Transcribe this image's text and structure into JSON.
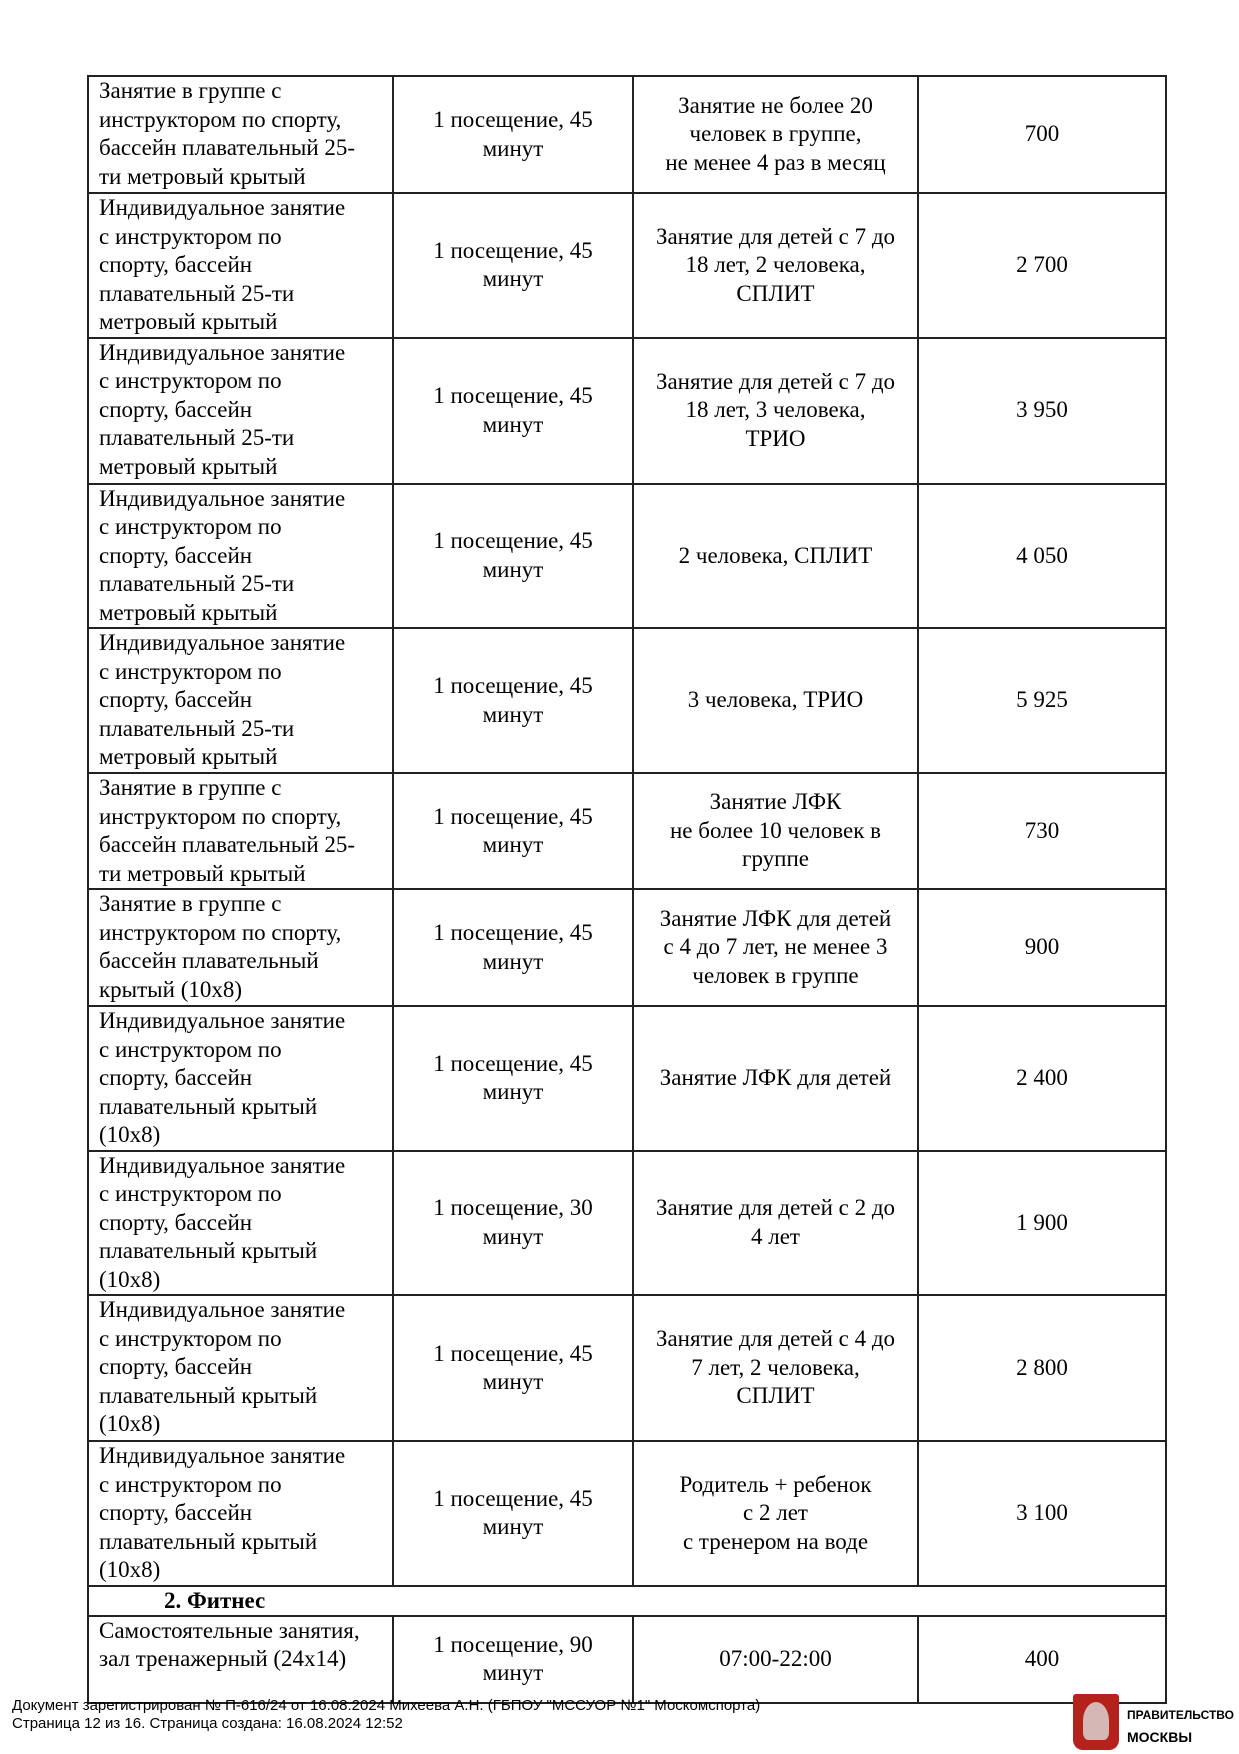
{
  "table": {
    "rows": [
      [
        "Занятие в группе с\nинструктором по спорту,\nбассейн плавательный 25-\nти метровый крытый",
        "1 посещение, 45\nминут",
        "Занятие не более 20\nчеловек в группе,\nне менее 4 раз в месяц",
        "700"
      ],
      [
        "Индивидуальное занятие\nс инструктором по\nспорту, бассейн\nплавательный 25-ти\nметровый крытый",
        "1 посещение, 45\nминут",
        "Занятие для детей с 7 до\n18 лет, 2 человека,\nСПЛИТ",
        "2 700"
      ],
      [
        "Индивидуальное занятие\nс инструктором по\nспорту, бассейн\nплавательный 25-ти\nметровый крытый",
        "1 посещение, 45\nминут",
        "Занятие для детей с 7 до\n18 лет, 3 человека,\nТРИО",
        "3 950"
      ],
      [
        "Индивидуальное занятие\nс инструктором по\nспорту, бассейн\nплавательный 25-ти\nметровый крытый",
        "1 посещение, 45\nминут",
        "2 человека, СПЛИТ",
        "4 050"
      ],
      [
        "Индивидуальное занятие\nс инструктором по\nспорту, бассейн\nплавательный 25-ти\nметровый крытый",
        "1 посещение, 45\nминут",
        "3 человека, ТРИО",
        "5 925"
      ],
      [
        "Занятие в группе с\nинструктором по спорту,\nбассейн плавательный 25-\nти метровый крытый",
        "1 посещение, 45\nминут",
        "Занятие ЛФК\nне более 10 человек в\nгруппе",
        "730"
      ],
      [
        "Занятие в группе с\nинструктором по спорту,\nбассейн плавательный\nкрытый (10х8)",
        "1 посещение, 45\nминут",
        "Занятие ЛФК для детей\nс 4 до 7 лет, не менее 3\nчеловек в группе",
        "900"
      ],
      [
        "Индивидуальное занятие\nс инструктором по\nспорту, бассейн\nплавательный крытый\n(10х8)",
        "1 посещение, 45\nминут",
        "Занятие ЛФК для детей",
        "2 400"
      ],
      [
        "Индивидуальное занятие\nс инструктором по\nспорту, бассейн\nплавательный крытый\n(10х8)",
        "1 посещение, 30\nминут",
        "Занятие для детей с 2 до\n4 лет",
        "1 900"
      ],
      [
        "Индивидуальное занятие\nс инструктором по\nспорту, бассейн\nплавательный крытый\n(10х8)",
        "1 посещение, 45\nминут",
        "Занятие для детей с 4 до\n7 лет, 2 человека,\nСПЛИТ",
        "2 800"
      ],
      [
        "Индивидуальное занятие\nс инструктором по\nспорту, бассейн\nплавательный крытый\n(10х8)",
        "1 посещение, 45\nминут",
        "Родитель + ребенок\nс 2 лет\nс тренером на воде",
        "3 100"
      ]
    ],
    "section": "2.   Фитнес",
    "fitness_rows": [
      [
        "Самостоятельные занятия,\nзал тренажерный (24х14)",
        "1 посещение, 90\nминут",
        "07:00-22:00",
        "400"
      ]
    ]
  },
  "footer": {
    "line1": "Документ зарегистрирован № П-616/24 от 16.08.2024 Михеева А.Н. (ГБПОУ \"МССУОР №1\" Москомспорта)",
    "line2": "Страница 12 из 16. Страница создана: 16.08.2024 12:52"
  },
  "logo": {
    "line1": "ПРАВИТЕЛЬСТВО",
    "line2": "МОСКВЫ",
    "icon": "moscow-coat-of-arms-icon",
    "color": "#b3231c"
  }
}
